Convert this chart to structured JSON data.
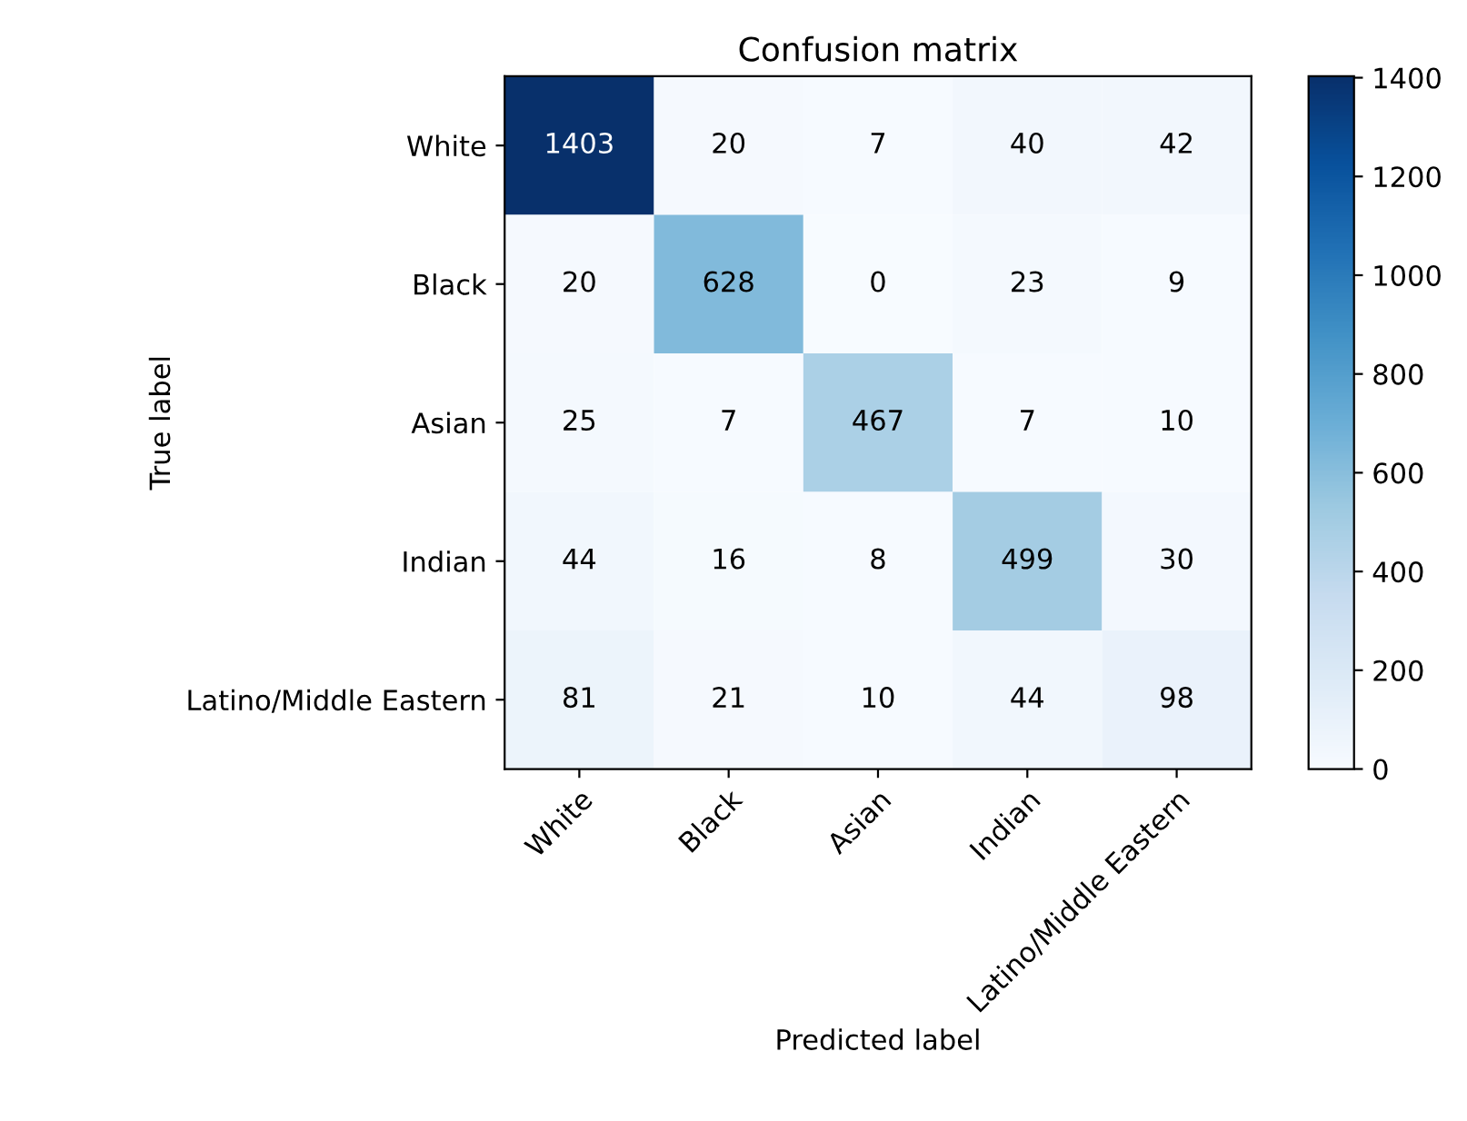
{
  "chart_data": {
    "type": "heatmap",
    "title": "Confusion matrix",
    "xlabel": "Predicted label",
    "ylabel": "True label",
    "categories": [
      "White",
      "Black",
      "Asian",
      "Indian",
      "Latino/Middle Eastern"
    ],
    "y_categories": [
      "White",
      "Black",
      "Asian",
      "Indian",
      "Latino/Middle Eastern"
    ],
    "cells": [
      [
        1403,
        20,
        7,
        40,
        42
      ],
      [
        20,
        628,
        0,
        23,
        9
      ],
      [
        25,
        7,
        467,
        7,
        10
      ],
      [
        44,
        16,
        8,
        499,
        30
      ],
      [
        81,
        21,
        10,
        44,
        98
      ]
    ],
    "clim": [
      0,
      1403
    ],
    "cticks": [
      0,
      200,
      400,
      600,
      800,
      1000,
      1200,
      1400
    ],
    "data_labels": true
  }
}
